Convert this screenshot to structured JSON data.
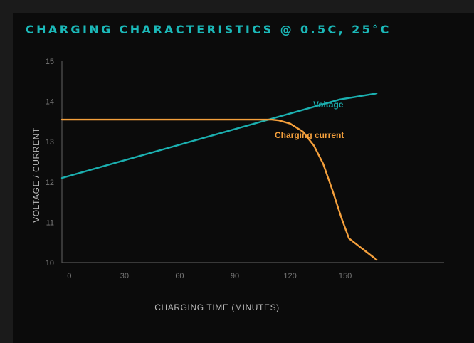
{
  "colors": {
    "background": "#0b0b0b",
    "title": "#1bb8b8",
    "voltage": "#1bb0b0",
    "current": "#f5a03c",
    "axis": "#555555",
    "tick_text": "#777777",
    "axis_label_text": "#bdbdbd"
  },
  "chart_data": {
    "type": "line",
    "title": "CHARGING CHARACTERISTICS @ 0.5C, 25°C",
    "xlabel": "CHARGING TIME (MINUTES)",
    "ylabel": "VOLTAGE / CURRENT",
    "xlim": [
      -4,
      184
    ],
    "ylim": [
      10,
      15
    ],
    "x_ticks": [
      0,
      30,
      60,
      90,
      120,
      150
    ],
    "y_ticks": [
      10,
      11,
      12,
      13,
      14,
      15
    ],
    "grid": false,
    "series": [
      {
        "name": "Voltage",
        "color": "#1bb0b0",
        "points": [
          [
            -4,
            12.1
          ],
          [
            147,
            14.05
          ],
          [
            167,
            14.2
          ]
        ]
      },
      {
        "name": "Charging current",
        "color": "#f5a03c",
        "points": [
          [
            -4,
            13.55
          ],
          [
            110,
            13.55
          ],
          [
            114,
            13.53
          ],
          [
            120,
            13.45
          ],
          [
            127,
            13.25
          ],
          [
            133,
            12.9
          ],
          [
            138,
            12.45
          ],
          [
            143,
            11.8
          ],
          [
            148,
            11.1
          ],
          [
            152,
            10.6
          ],
          [
            167,
            10.07
          ]
        ]
      }
    ]
  }
}
